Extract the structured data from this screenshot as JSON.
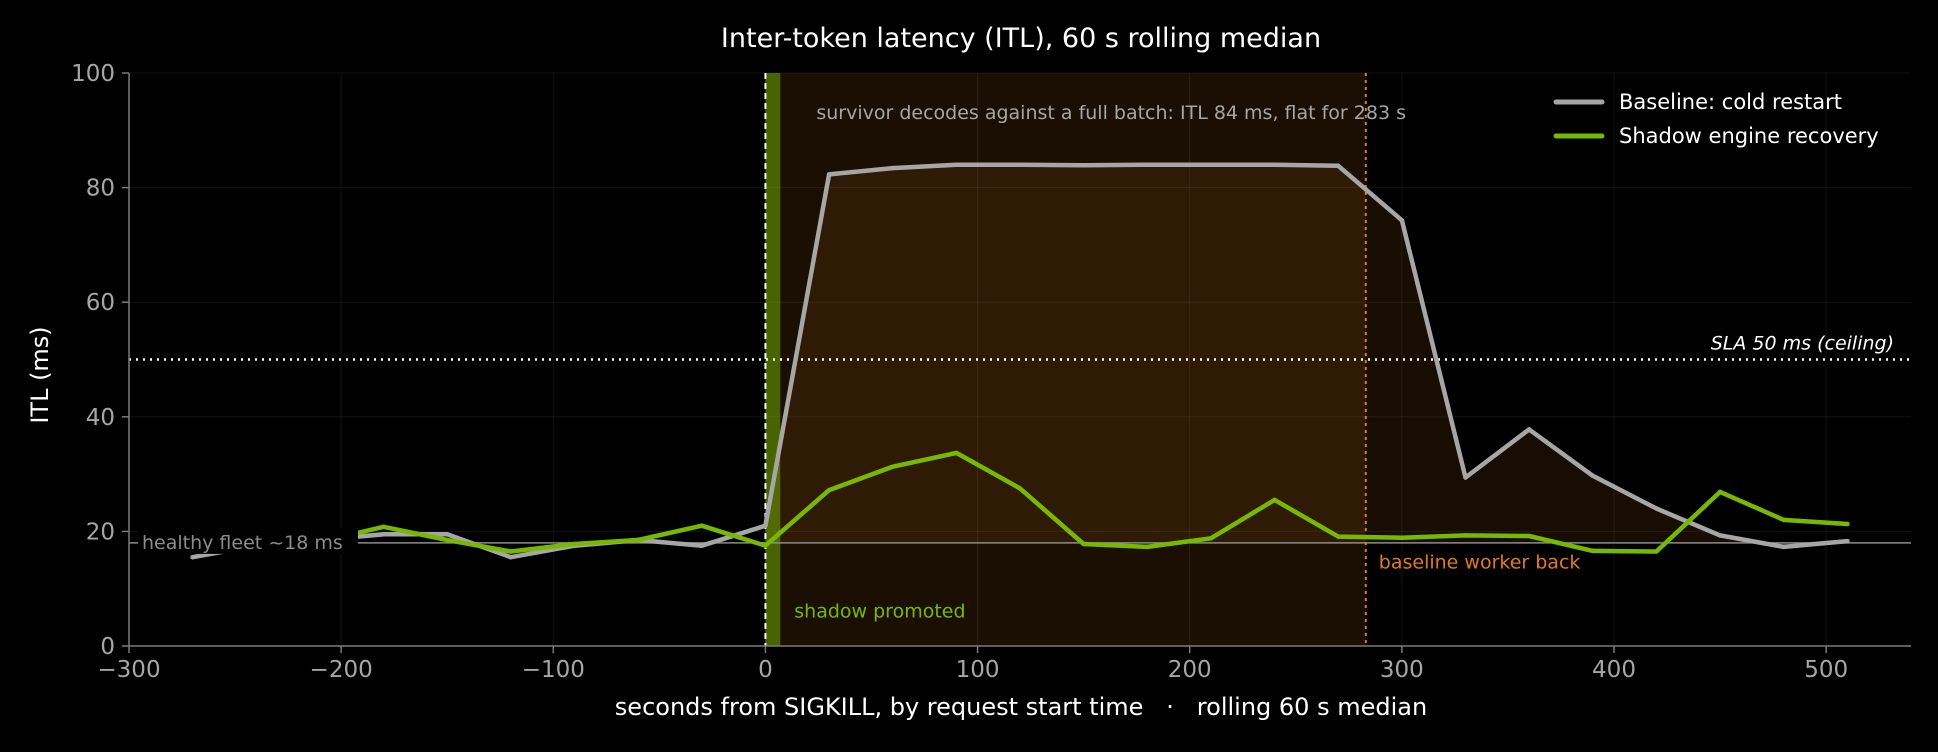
{
  "chart_data": {
    "type": "line",
    "title": "Inter-token latency (ITL), 60 s rolling median",
    "xlabel": "seconds from SIGKILL, by request start time   ·   rolling 60 s median",
    "ylabel": "ITL (ms)",
    "xlim": [
      -300,
      540
    ],
    "ylim": [
      0,
      100
    ],
    "x_ticks": [
      -300,
      -200,
      -100,
      0,
      100,
      200,
      300,
      400,
      500
    ],
    "x_tick_labels": [
      "−300",
      "−200",
      "−100",
      "0",
      "100",
      "200",
      "300",
      "400",
      "500"
    ],
    "y_ticks": [
      0,
      20,
      40,
      60,
      80,
      100
    ],
    "y_tick_labels": [
      "0",
      "20",
      "40",
      "60",
      "80",
      "100"
    ],
    "grid": true,
    "legend_position": "top-right",
    "series": [
      {
        "name": "Baseline: cold restart",
        "color": "#a6a6a6",
        "x": [
          -270,
          -240,
          -210,
          -180,
          -150,
          -120,
          -90,
          -60,
          -30,
          0,
          30,
          60,
          90,
          120,
          150,
          180,
          210,
          240,
          270,
          300,
          330,
          360,
          390,
          420,
          450,
          480,
          510
        ],
        "y": [
          15.5,
          17.5,
          18.5,
          19.5,
          19.5,
          15.5,
          17.5,
          18.5,
          17.5,
          21,
          82.3,
          83.4,
          84,
          84,
          83.9,
          84,
          84,
          84,
          83.8,
          74.3,
          29.4,
          37.8,
          29.7,
          24,
          19.3,
          17.3,
          18.3
        ]
      },
      {
        "name": "Shadow engine recovery",
        "color": "#76b900",
        "x": [
          -195,
          -180,
          -150,
          -120,
          -90,
          -60,
          -30,
          0,
          30,
          60,
          90,
          120,
          150,
          180,
          210,
          240,
          270,
          300,
          330,
          360,
          390,
          420,
          450,
          480,
          510
        ],
        "y": [
          19.5,
          20.8,
          18.5,
          16.5,
          17.8,
          18.5,
          21,
          17.5,
          27.2,
          31.3,
          33.7,
          27.5,
          17.8,
          17.3,
          18.8,
          25.5,
          19.1,
          18.9,
          19.3,
          19.2,
          16.6,
          16.5,
          26.9,
          22,
          21.3
        ]
      }
    ],
    "reference_lines": {
      "sla": {
        "y": 50,
        "label": "SLA 50 ms (ceiling)",
        "color": "#ffffff"
      },
      "healthy": {
        "y": 18,
        "label": "healthy fleet ~18 ms",
        "color": "#8c8c8c"
      },
      "sigkill": {
        "x": 0,
        "color": "#ffffff"
      },
      "baseline_back": {
        "x": 283,
        "label": "baseline worker back",
        "color": "#e07b1f"
      }
    },
    "shaded_spans": [
      {
        "from": 0,
        "to": 283,
        "color": "#e07b1f"
      },
      {
        "from": 0,
        "to": 7,
        "label": "shadow promoted",
        "color": "#76b900"
      }
    ],
    "annotations": [
      {
        "x": 24,
        "y": 92,
        "text": "survivor decodes against a full batch: ITL 84 ms, flat for 283 s",
        "color": "#a6a6a6"
      }
    ]
  }
}
